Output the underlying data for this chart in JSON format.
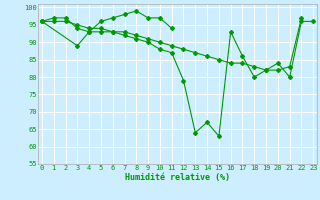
{
  "xlabel": "Humidité relative (%)",
  "background_color": "#cceeff",
  "grid_color": "#ffffff",
  "line_color": "#009900",
  "ylim": [
    55,
    101
  ],
  "xlim": [
    -0.3,
    23.3
  ],
  "yticks": [
    55,
    60,
    65,
    70,
    75,
    80,
    85,
    90,
    95,
    100
  ],
  "xticks": [
    0,
    1,
    2,
    3,
    4,
    5,
    6,
    7,
    8,
    9,
    10,
    11,
    12,
    13,
    14,
    15,
    16,
    17,
    18,
    19,
    20,
    21,
    22,
    23
  ],
  "series": [
    {
      "x": [
        0,
        1,
        2,
        3,
        4,
        5,
        6,
        7,
        8,
        9,
        10,
        11
      ],
      "y": [
        96,
        97,
        97,
        94,
        93,
        96,
        97,
        98,
        99,
        97,
        97,
        94
      ]
    },
    {
      "x": [
        0,
        3,
        4,
        5,
        6,
        7,
        8,
        9,
        10,
        11,
        12,
        13,
        14,
        15,
        16,
        17,
        18,
        19,
        20,
        21,
        22,
        23
      ],
      "y": [
        96,
        89,
        93,
        93,
        93,
        92,
        91,
        90,
        88,
        87,
        79,
        64,
        67,
        63,
        93,
        86,
        80,
        82,
        84,
        80,
        96,
        96
      ]
    },
    {
      "x": [
        0,
        1,
        2,
        3,
        4,
        5,
        6,
        7,
        8,
        9,
        10,
        11,
        12,
        13,
        14,
        15,
        16,
        17,
        18,
        19,
        20,
        21,
        22
      ],
      "y": [
        96,
        96,
        96,
        95,
        94,
        94,
        93,
        93,
        92,
        91,
        90,
        89,
        88,
        87,
        86,
        85,
        84,
        84,
        83,
        82,
        82,
        83,
        97
      ]
    }
  ]
}
